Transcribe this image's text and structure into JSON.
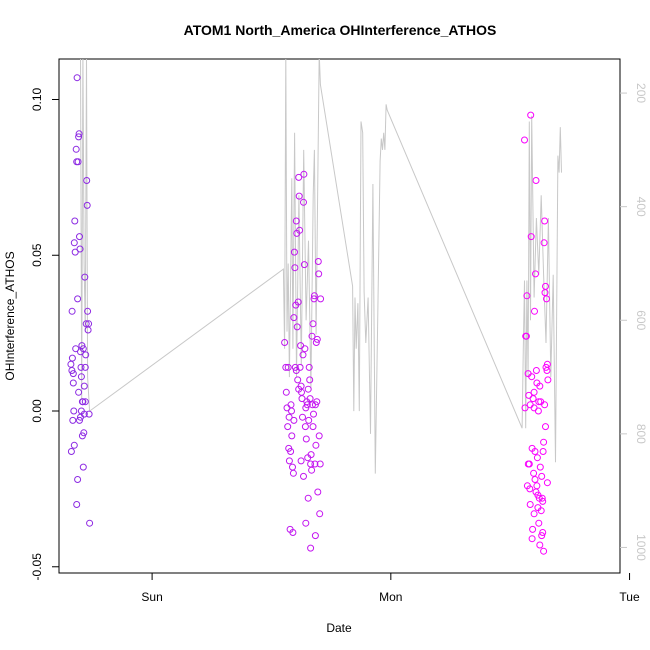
{
  "chart_data": {
    "type": "scatter",
    "title": "ATOM1 North_America OHInterference_ATHOS",
    "xlabel": "Date",
    "ylabel": "OHInterference_ATHOS",
    "x_ticks": [
      "Sun",
      "Mon",
      "Tue"
    ],
    "y_ticks": [
      "-0.05",
      "0.00",
      "0.05",
      "0.10"
    ],
    "y_ticks_right": [
      "200",
      "400",
      "600",
      "800",
      "1000"
    ],
    "ylim": [
      -0.052,
      0.113
    ],
    "ylim_right": [
      1045,
      140
    ],
    "xlim_days": [
      -0.39,
      1.96
    ],
    "grid": false,
    "colors": {
      "early": "#8a2be2",
      "late": "#ff00ff",
      "line": "#c8c8c8"
    },
    "line_series_right_axis": [
      [
        -0.3,
        130
      ],
      [
        -0.295,
        740
      ],
      [
        -0.29,
        130
      ],
      [
        -0.285,
        500
      ],
      [
        -0.28,
        620
      ],
      [
        -0.275,
        130
      ],
      [
        -0.27,
        700
      ],
      [
        -0.262,
        760
      ],
      [
        0.55,
        510
      ],
      [
        0.555,
        650
      ],
      [
        0.56,
        130
      ],
      [
        0.565,
        620
      ],
      [
        0.57,
        500
      ],
      [
        0.575,
        700
      ],
      [
        0.585,
        350
      ],
      [
        0.59,
        650
      ],
      [
        0.597,
        270
      ],
      [
        0.605,
        700
      ],
      [
        0.615,
        380
      ],
      [
        0.625,
        680
      ],
      [
        0.635,
        300
      ],
      [
        0.645,
        600
      ],
      [
        0.655,
        460
      ],
      [
        0.665,
        720
      ],
      [
        0.675,
        380
      ],
      [
        0.68,
        300
      ],
      [
        0.687,
        625
      ],
      [
        0.7,
        130
      ],
      [
        0.705,
        185
      ],
      [
        0.84,
        540
      ],
      [
        0.845,
        760
      ],
      [
        0.85,
        560
      ],
      [
        0.855,
        650
      ],
      [
        0.862,
        570
      ],
      [
        0.868,
        760
      ],
      [
        0.875,
        250
      ],
      [
        0.882,
        270
      ],
      [
        0.888,
        550
      ],
      [
        0.895,
        640
      ],
      [
        0.905,
        560
      ],
      [
        0.915,
        800
      ],
      [
        0.925,
        360
      ],
      [
        0.935,
        870
      ],
      [
        0.945,
        600
      ],
      [
        0.955,
        320
      ],
      [
        0.96,
        280
      ],
      [
        0.965,
        300
      ],
      [
        0.97,
        270
      ],
      [
        0.975,
        300
      ],
      [
        0.98,
        220
      ],
      [
        0.985,
        230
      ],
      [
        1.55,
        790
      ],
      [
        1.555,
        650
      ],
      [
        1.56,
        530
      ],
      [
        1.565,
        790
      ],
      [
        1.57,
        530
      ],
      [
        1.575,
        700
      ],
      [
        1.58,
        250
      ],
      [
        1.585,
        600
      ],
      [
        1.59,
        240
      ],
      [
        1.6,
        560
      ],
      [
        1.61,
        420
      ],
      [
        1.62,
        520
      ],
      [
        1.63,
        380
      ],
      [
        1.64,
        520
      ],
      [
        1.65,
        640
      ],
      [
        1.66,
        420
      ],
      [
        1.67,
        700
      ],
      [
        1.68,
        520
      ],
      [
        1.69,
        850
      ],
      [
        1.7,
        310
      ],
      [
        1.705,
        340
      ],
      [
        1.71,
        260
      ],
      [
        1.715,
        340
      ]
    ],
    "series": [
      {
        "points": [
          [
            -0.34,
            0.015
          ],
          [
            -0.335,
            0.032
          ],
          [
            -0.332,
            -0.003
          ],
          [
            -0.33,
            0.012
          ],
          [
            -0.328,
            0.0
          ],
          [
            -0.326,
            0.054
          ],
          [
            -0.324,
            0.061
          ],
          [
            -0.322,
            0.051
          ],
          [
            -0.32,
            0.02
          ],
          [
            -0.318,
            0.084
          ],
          [
            -0.316,
            0.08
          ],
          [
            -0.314,
            0.107
          ],
          [
            -0.312,
            0.036
          ],
          [
            -0.31,
            0.08
          ],
          [
            -0.308,
            0.088
          ],
          [
            -0.306,
            0.089
          ],
          [
            -0.304,
            0.056
          ],
          [
            -0.302,
            0.052
          ],
          [
            -0.3,
            0.019
          ],
          [
            -0.298,
            0.014
          ],
          [
            -0.296,
            0.011
          ],
          [
            -0.294,
            0.021
          ],
          [
            -0.292,
            0.003
          ],
          [
            -0.29,
            0.003
          ],
          [
            -0.288,
            0.02
          ],
          [
            -0.286,
            -0.007
          ],
          [
            -0.284,
            0.008
          ],
          [
            -0.282,
            0.043
          ],
          [
            -0.28,
            0.014
          ],
          [
            -0.278,
            0.018
          ],
          [
            -0.276,
            0.028
          ],
          [
            -0.274,
            0.074
          ],
          [
            -0.272,
            0.066
          ],
          [
            -0.27,
            0.032
          ],
          [
            -0.268,
            0.026
          ],
          [
            -0.266,
            0.028
          ],
          [
            -0.264,
            -0.001
          ],
          [
            -0.262,
            -0.036
          ],
          [
            -0.336,
            0.013
          ],
          [
            -0.334,
            0.017
          ],
          [
            -0.33,
            0.009
          ],
          [
            -0.326,
            -0.011
          ],
          [
            -0.338,
            -0.013
          ],
          [
            -0.316,
            -0.03
          ],
          [
            -0.312,
            -0.022
          ],
          [
            -0.308,
            0.006
          ],
          [
            -0.304,
            -0.003
          ],
          [
            -0.3,
            -0.002
          ],
          [
            -0.296,
            0.0
          ],
          [
            -0.292,
            -0.008
          ],
          [
            -0.288,
            -0.018
          ],
          [
            -0.284,
            -0.001
          ],
          [
            -0.28,
            0.003
          ]
        ]
      },
      {
        "points": [
          [
            0.555,
            0.022
          ],
          [
            0.56,
            0.014
          ],
          [
            0.562,
            0.006
          ],
          [
            0.565,
            0.001
          ],
          [
            0.568,
            -0.005
          ],
          [
            0.57,
            0.014
          ],
          [
            0.572,
            -0.012
          ],
          [
            0.575,
            -0.016
          ],
          [
            0.578,
            -0.038
          ],
          [
            0.58,
            -0.013
          ],
          [
            0.582,
            0.002
          ],
          [
            0.585,
            -0.008
          ],
          [
            0.588,
            -0.018
          ],
          [
            0.59,
            -0.039
          ],
          [
            0.592,
            -0.02
          ],
          [
            0.594,
            0.03
          ],
          [
            0.596,
            0.051
          ],
          [
            0.598,
            0.046
          ],
          [
            0.6,
            0.014
          ],
          [
            0.602,
            0.034
          ],
          [
            0.604,
            0.061
          ],
          [
            0.606,
            0.057
          ],
          [
            0.608,
            0.027
          ],
          [
            0.61,
            0.01
          ],
          [
            0.612,
            0.035
          ],
          [
            0.614,
            0.075
          ],
          [
            0.616,
            0.069
          ],
          [
            0.618,
            0.058
          ],
          [
            0.62,
            0.014
          ],
          [
            0.622,
            0.021
          ],
          [
            0.624,
            0.008
          ],
          [
            0.626,
            0.006
          ],
          [
            0.628,
            0.004
          ],
          [
            0.63,
            -0.002
          ],
          [
            0.632,
            0.018
          ],
          [
            0.634,
            0.067
          ],
          [
            0.636,
            0.076
          ],
          [
            0.638,
            0.047
          ],
          [
            0.64,
            0.02
          ],
          [
            0.642,
            -0.005
          ],
          [
            0.644,
            -0.036
          ],
          [
            0.646,
            -0.009
          ],
          [
            0.648,
            0.003
          ],
          [
            0.65,
            0.002
          ],
          [
            0.652,
            -0.015
          ],
          [
            0.654,
            -0.028
          ],
          [
            0.656,
            -0.003
          ],
          [
            0.658,
            0.014
          ],
          [
            0.66,
            0.01
          ],
          [
            0.662,
            0.004
          ],
          [
            0.664,
            -0.044
          ],
          [
            0.666,
            -0.014
          ],
          [
            0.668,
            -0.019
          ],
          [
            0.67,
            0.024
          ],
          [
            0.672,
            0.002
          ],
          [
            0.674,
            0.028
          ],
          [
            0.676,
            -0.001
          ],
          [
            0.678,
            0.036
          ],
          [
            0.68,
            0.037
          ],
          [
            0.682,
            -0.017
          ],
          [
            0.684,
            -0.04
          ],
          [
            0.686,
            -0.011
          ],
          [
            0.688,
            0.022
          ],
          [
            0.69,
            0.003
          ],
          [
            0.692,
            0.023
          ],
          [
            0.694,
            -0.026
          ],
          [
            0.696,
            0.048
          ],
          [
            0.698,
            0.044
          ],
          [
            0.7,
            -0.008
          ],
          [
            0.702,
            -0.033
          ],
          [
            0.704,
            -0.017
          ],
          [
            0.706,
            0.036
          ],
          [
            0.574,
            -0.002
          ],
          [
            0.584,
            0.0
          ],
          [
            0.594,
            -0.003
          ],
          [
            0.604,
            0.013
          ],
          [
            0.614,
            0.007
          ],
          [
            0.624,
            -0.016
          ],
          [
            0.634,
            -0.021
          ],
          [
            0.644,
            0.001
          ],
          [
            0.654,
            0.007
          ],
          [
            0.664,
            -0.017
          ],
          [
            0.674,
            -0.005
          ],
          [
            0.684,
            0.002
          ]
        ]
      },
      {
        "points": [
          [
            1.56,
            0.087
          ],
          [
            1.562,
            0.001
          ],
          [
            1.565,
            0.024
          ],
          [
            1.568,
            0.024
          ],
          [
            1.57,
            0.037
          ],
          [
            1.572,
            -0.024
          ],
          [
            1.575,
            0.012
          ],
          [
            1.578,
            0.005
          ],
          [
            1.58,
            -0.017
          ],
          [
            1.582,
            -0.025
          ],
          [
            1.584,
            0.002
          ],
          [
            1.586,
            0.095
          ],
          [
            1.588,
            0.056
          ],
          [
            1.59,
            0.011
          ],
          [
            1.592,
            -0.012
          ],
          [
            1.594,
            -0.038
          ],
          [
            1.596,
            0.004
          ],
          [
            1.598,
            -0.02
          ],
          [
            1.6,
            0.001
          ],
          [
            1.602,
            0.032
          ],
          [
            1.604,
            -0.022
          ],
          [
            1.606,
            0.044
          ],
          [
            1.608,
            0.074
          ],
          [
            1.61,
            0.013
          ],
          [
            1.612,
            -0.024
          ],
          [
            1.614,
            -0.015
          ],
          [
            1.616,
            -0.027
          ],
          [
            1.618,
            0.0
          ],
          [
            1.62,
            -0.036
          ],
          [
            1.622,
            -0.028
          ],
          [
            1.624,
            0.008
          ],
          [
            1.626,
            -0.018
          ],
          [
            1.628,
            0.003
          ],
          [
            1.63,
            -0.032
          ],
          [
            1.632,
            -0.021
          ],
          [
            1.634,
            -0.028
          ],
          [
            1.636,
            -0.039
          ],
          [
            1.638,
            -0.013
          ],
          [
            1.64,
            -0.01
          ],
          [
            1.642,
            0.054
          ],
          [
            1.644,
            0.061
          ],
          [
            1.646,
            0.038
          ],
          [
            1.648,
            0.04
          ],
          [
            1.65,
            0.014
          ],
          [
            1.652,
            0.036
          ],
          [
            1.654,
            0.013
          ],
          [
            1.656,
            0.015
          ],
          [
            1.658,
            0.01
          ],
          [
            1.576,
            -0.017
          ],
          [
            1.584,
            -0.03
          ],
          [
            1.592,
            -0.041
          ],
          [
            1.6,
            -0.033
          ],
          [
            1.608,
            -0.026
          ],
          [
            1.616,
            -0.031
          ],
          [
            1.624,
            -0.043
          ],
          [
            1.632,
            -0.04
          ],
          [
            1.64,
            -0.045
          ],
          [
            1.648,
            -0.005
          ],
          [
            1.656,
            -0.023
          ],
          [
            1.6,
            0.006
          ],
          [
            1.612,
            0.009
          ],
          [
            1.62,
            0.003
          ],
          [
            1.636,
            -0.029
          ],
          [
            1.644,
            0.002
          ],
          [
            1.604,
            -0.013
          ]
        ]
      }
    ]
  }
}
